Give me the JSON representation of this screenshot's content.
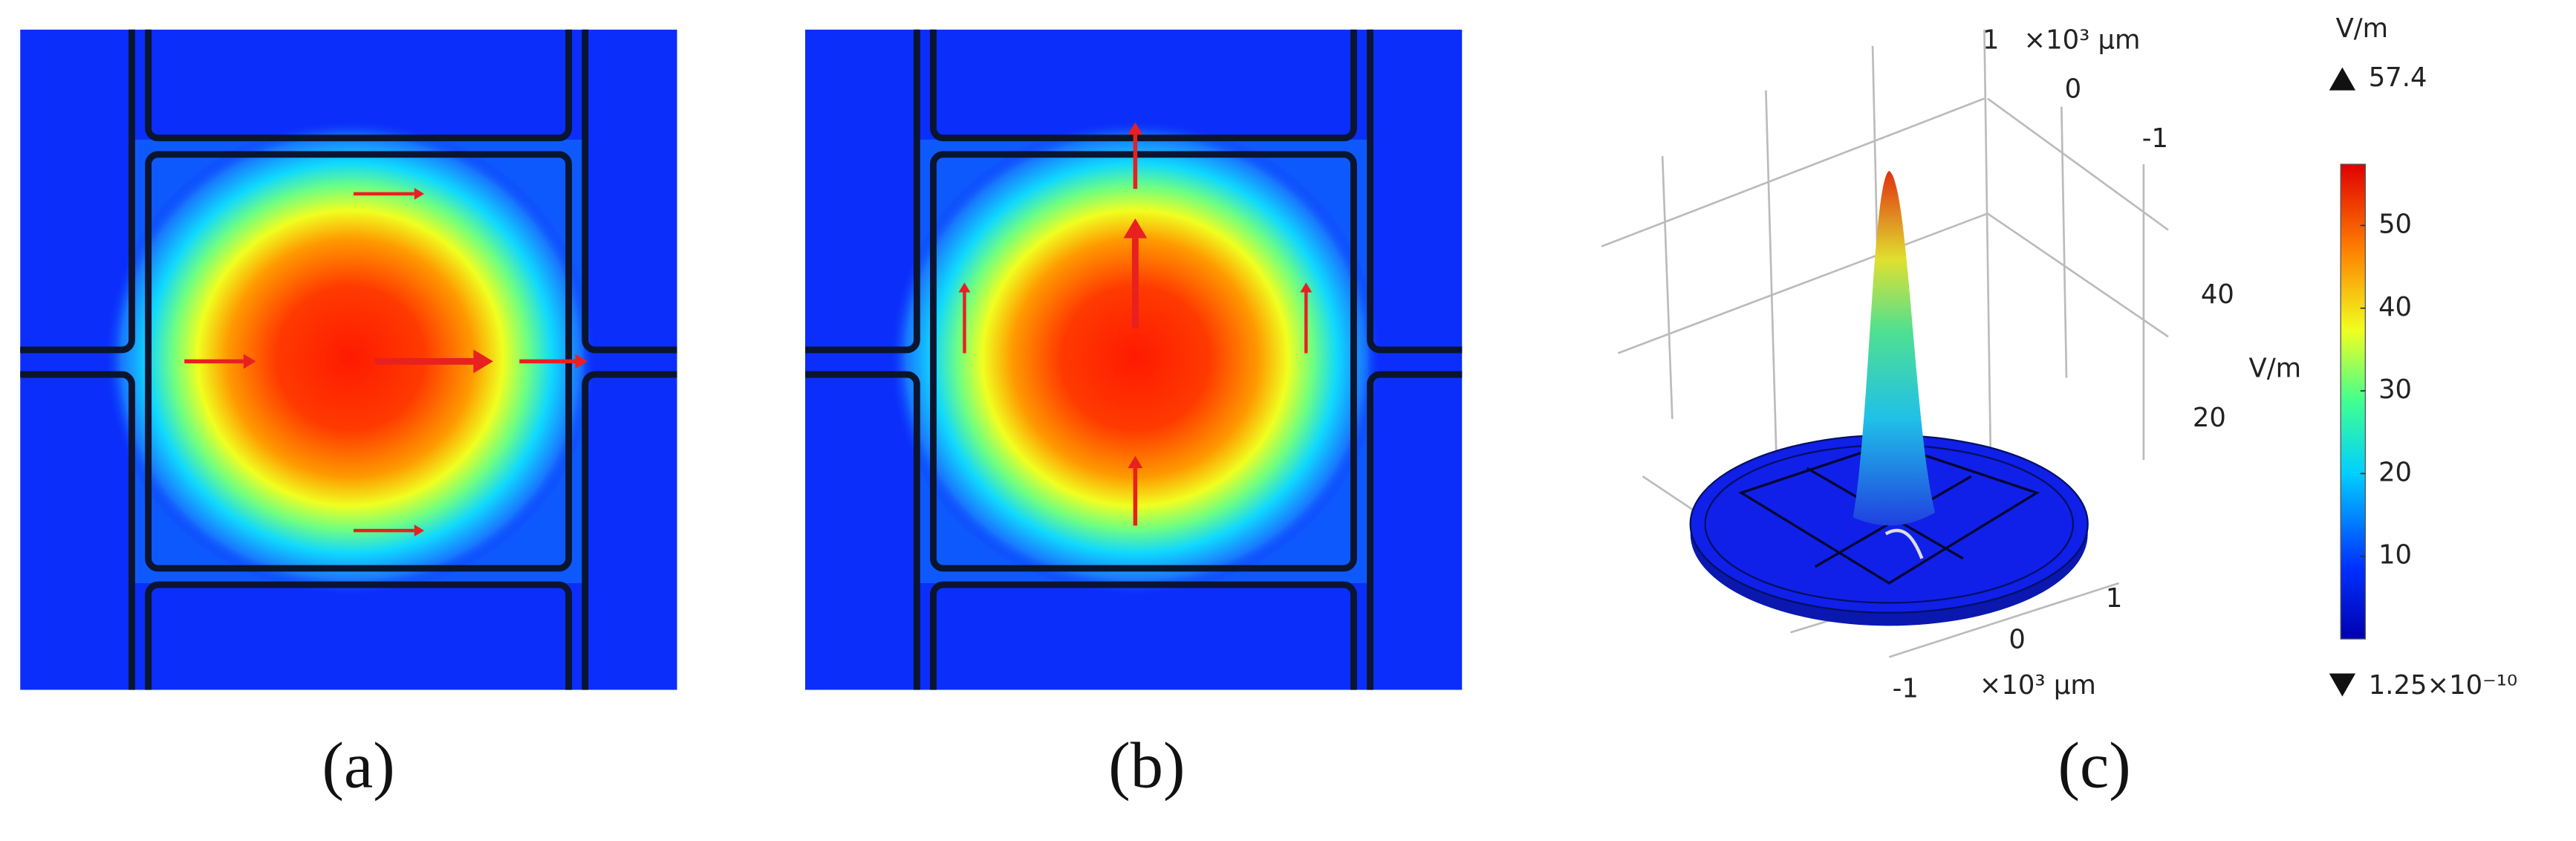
{
  "panels": [
    {
      "label": "(a)"
    },
    {
      "label": "(b)"
    },
    {
      "label": "(c)",
      "axes": {
        "y_ticks": [
          "1",
          "0",
          "-1"
        ],
        "y_unit": "×10³ μm",
        "z_ticks": [
          "40",
          "20"
        ],
        "z_unit": "V/m",
        "x_ticks": [
          "1",
          "0",
          "-1"
        ],
        "x_unit": "×10³ μm"
      }
    }
  ],
  "colorbar": {
    "unit": "V/m",
    "max": 57.4,
    "min": {
      "value": 1.25e-10,
      "label": "1.25×10⁻¹⁰"
    },
    "ticks": [
      10,
      20,
      30,
      40,
      50
    ]
  }
}
